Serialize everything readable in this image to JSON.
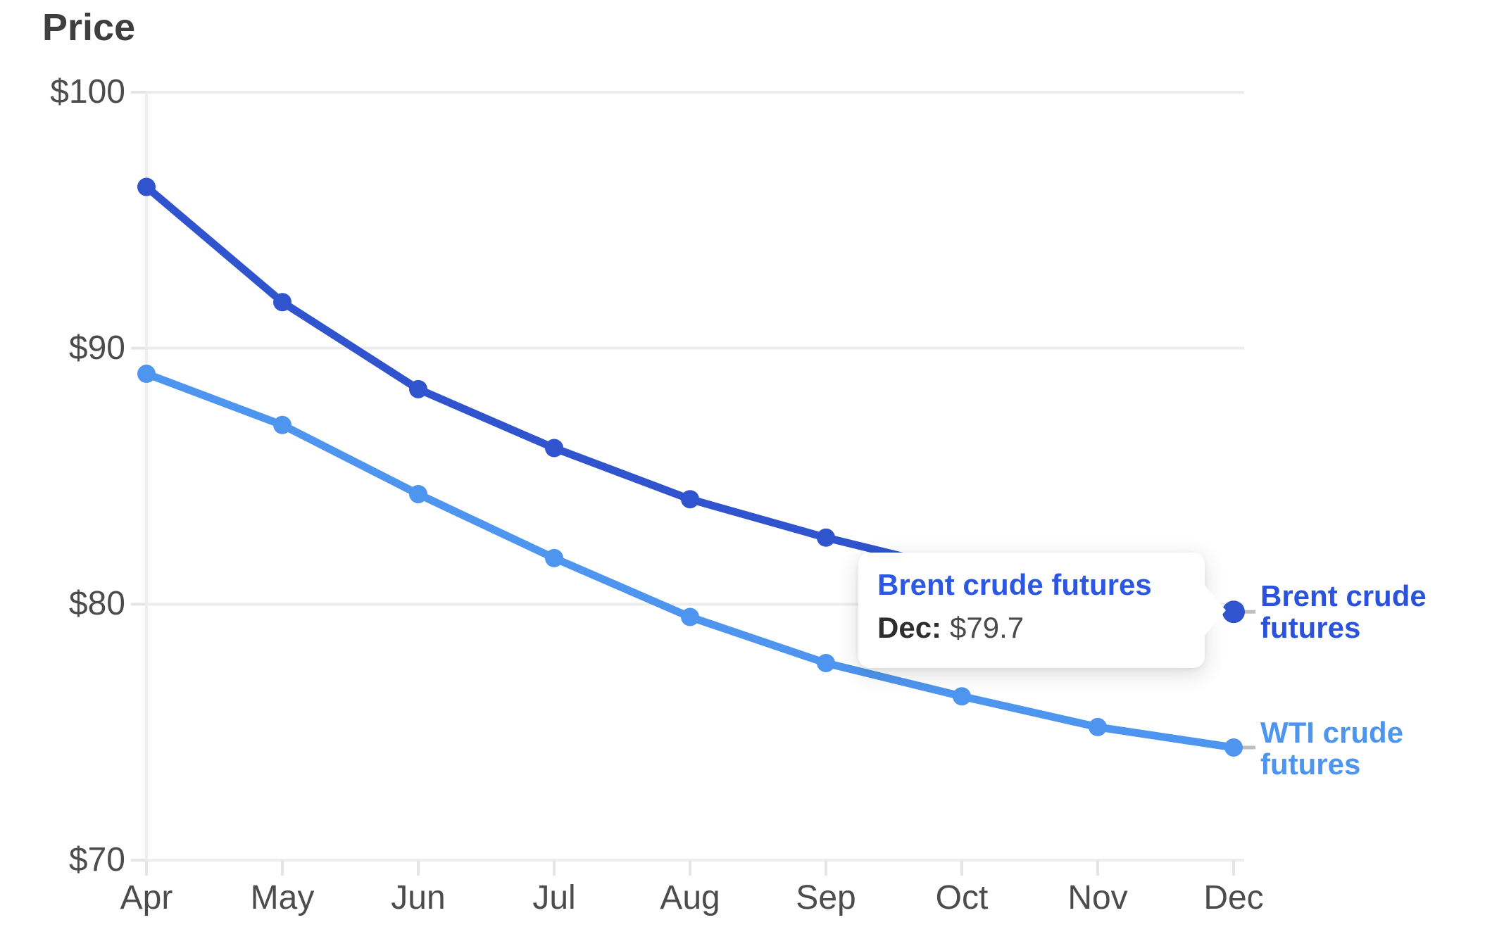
{
  "title": "Price",
  "y_axis": {
    "labels": [
      "$100",
      "$90",
      "$80",
      "$70"
    ]
  },
  "x_axis": {
    "labels": [
      "Apr",
      "May",
      "Jun",
      "Jul",
      "Aug",
      "Sep",
      "Oct",
      "Nov",
      "Dec"
    ]
  },
  "tooltip": {
    "series": "Brent crude futures",
    "month": "Dec:",
    "value": "$79.7"
  },
  "end_labels": {
    "brent": {
      "line1": "Brent crude",
      "line2": "futures"
    },
    "wti": {
      "line1": "WTI crude",
      "line2": "futures"
    }
  },
  "colors": {
    "brent_line": "#2f54cd",
    "brent_text": "#2b57e2",
    "wti_line": "#4e95ef",
    "grid": "#ededed",
    "tick": "#e5e5e5",
    "axis_text": "#4c4c4c",
    "title_text": "#3e3e3e",
    "leader_dash": "#bdbdbd"
  },
  "chart_data": {
    "type": "line",
    "title": "Price",
    "categories": [
      "Apr",
      "May",
      "Jun",
      "Jul",
      "Aug",
      "Sep",
      "Oct",
      "Nov",
      "Dec"
    ],
    "series": [
      {
        "name": "Brent crude futures",
        "color": "#2f54cd",
        "values": [
          96.3,
          91.8,
          88.4,
          86.1,
          84.1,
          82.6,
          81.3,
          80.3,
          79.7
        ]
      },
      {
        "name": "WTI crude futures",
        "color": "#4e95ef",
        "values": [
          89.0,
          87.0,
          84.3,
          81.8,
          79.5,
          77.7,
          76.4,
          75.2,
          74.4
        ]
      }
    ],
    "ylabel": "Price",
    "ylim": [
      70,
      100
    ],
    "yticks": [
      100,
      90,
      80,
      70
    ],
    "grid": true,
    "legend_position": "right-end-labels",
    "highlight": {
      "series": "Brent crude futures",
      "category": "Dec",
      "value": 79.7
    }
  }
}
